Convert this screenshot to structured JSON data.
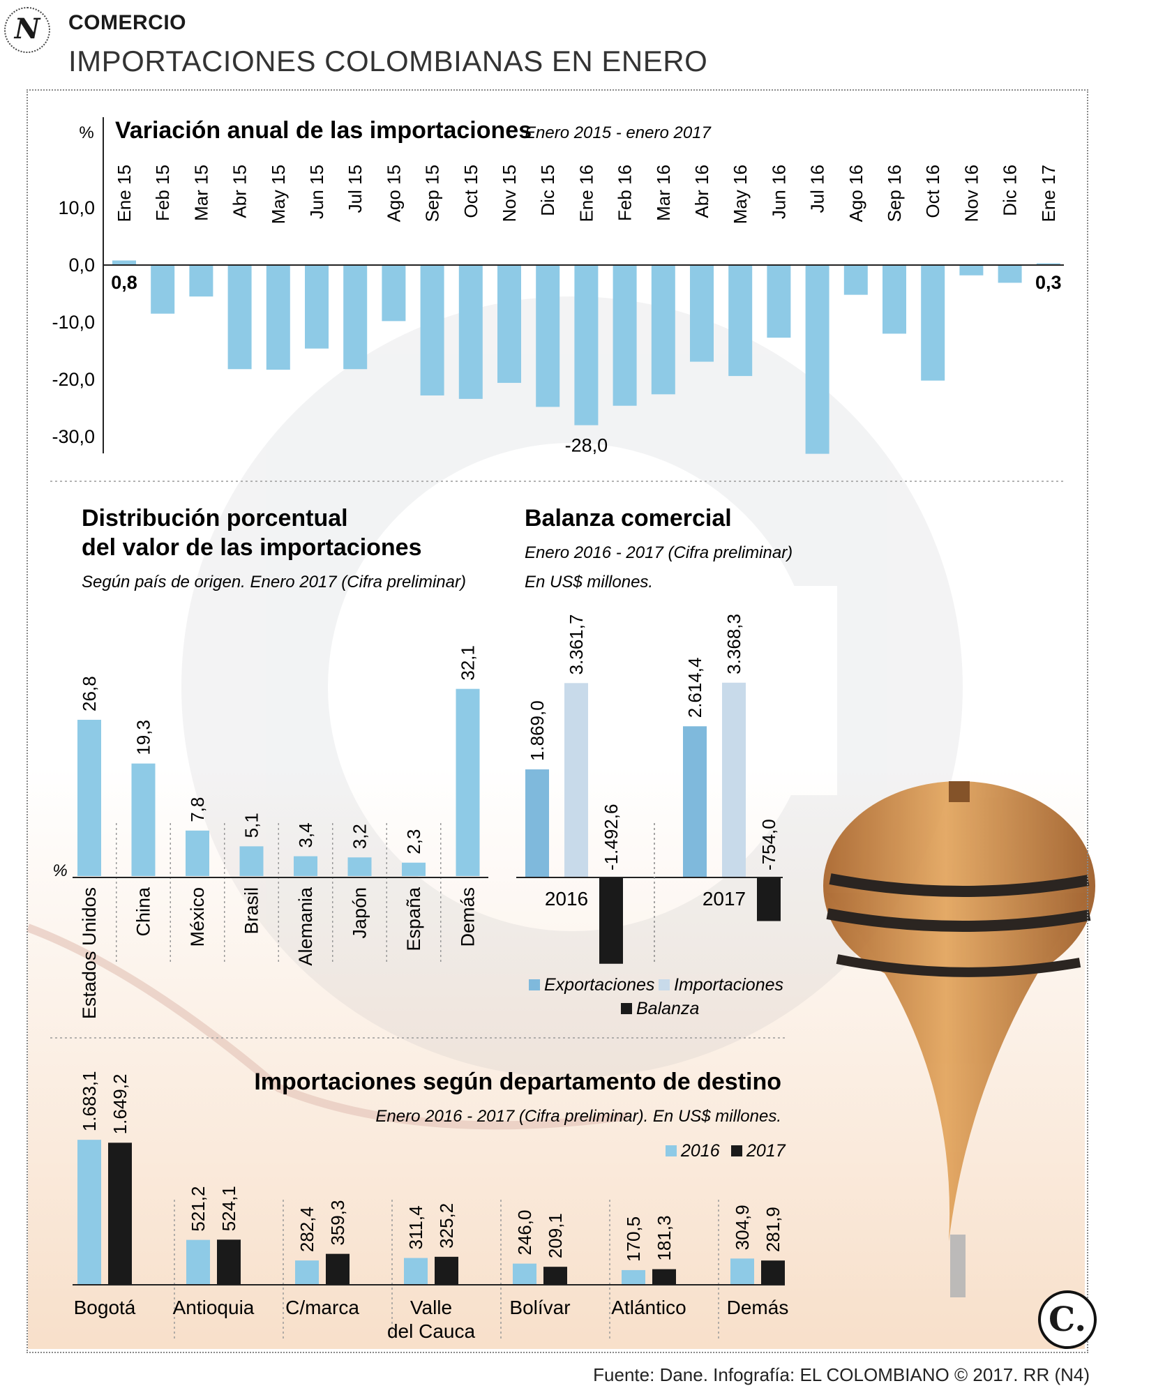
{
  "header": {
    "section": "COMERCIO",
    "title": "IMPORTACIONES COLOMBIANAS EN ENERO",
    "logo_letter": "N"
  },
  "footer": {
    "source": "Fuente: Dane. Infografía: EL COLOMBIANO © 2017. RR (N4)",
    "logo_letter": "C."
  },
  "colors": {
    "light_blue": "#8ecae6",
    "mid_blue": "#7fb9dc",
    "pale_blue": "#c8daea",
    "black": "#1a1a1a"
  },
  "chart_data": [
    {
      "id": "variacion",
      "type": "bar",
      "title": "Variación anual de las importaciones",
      "subtitle": "Enero 2015 - enero 2017",
      "ylabel": "%",
      "ylim": [
        -30,
        10
      ],
      "yticks": [
        "10,0",
        "0,0",
        "-10,0",
        "-20,0",
        "-30,0"
      ],
      "ytick_values": [
        10,
        0,
        -10,
        -20,
        -30
      ],
      "categories": [
        "Ene 15",
        "Feb 15",
        "Mar 15",
        "Abr 15",
        "May 15",
        "Jun 15",
        "Jul 15",
        "Ago 15",
        "Sep 15",
        "Oct 15",
        "Nov 15",
        "Dic 15",
        "Ene 16",
        "Feb 16",
        "Mar 16",
        "Abr 16",
        "May 16",
        "Jun 16",
        "Jul 16",
        "Ago 16",
        "Sep 16",
        "Oct 16",
        "Nov 16",
        "Dic 16",
        "Ene 17"
      ],
      "values": [
        0.8,
        -8.5,
        -5.5,
        -18.2,
        -18.3,
        -14.6,
        -18.2,
        -9.8,
        -22.8,
        -23.4,
        -20.6,
        -24.8,
        -28.0,
        -24.6,
        -22.6,
        -16.9,
        -19.4,
        -12.7,
        -33.0,
        -5.2,
        -12.0,
        -20.2,
        -1.8,
        -3.1,
        0.3
      ],
      "data_labels": [
        {
          "index": 0,
          "text": "0,8"
        },
        {
          "index": 12,
          "text": "-28,0"
        },
        {
          "index": 24,
          "text": "0,3"
        }
      ]
    },
    {
      "id": "distribucion",
      "type": "bar",
      "title_line1": "Distribución porcentual",
      "title_line2": "del valor de las importaciones",
      "subtitle": "Según país de origen. Enero 2017 (Cifra preliminar)",
      "ylabel": "%",
      "categories": [
        "Estados Unidos",
        "China",
        "México",
        "Brasil",
        "Alemania",
        "Japón",
        "España",
        "Demás"
      ],
      "values": [
        26.8,
        19.3,
        7.8,
        5.1,
        3.4,
        3.2,
        2.3,
        32.1
      ],
      "labels": [
        "26,8",
        "19,3",
        "7,8",
        "5,1",
        "3,4",
        "3,2",
        "2,3",
        "32,1"
      ]
    },
    {
      "id": "balanza",
      "type": "bar",
      "title": "Balanza comercial",
      "subtitle_line1": "Enero 2016 - 2017 (Cifra preliminar)",
      "subtitle_line2": "En US$ millones.",
      "categories": [
        "2016",
        "2017"
      ],
      "series": [
        {
          "name": "Exportaciones",
          "values": [
            1869.0,
            2614.4
          ],
          "labels": [
            "1.869,0",
            "2.614,4"
          ]
        },
        {
          "name": "Importaciones",
          "values": [
            3361.7,
            3368.3
          ],
          "labels": [
            "3.361,7",
            "3.368,3"
          ]
        },
        {
          "name": "Balanza",
          "values": [
            -1492.6,
            -754.0
          ],
          "labels": [
            "-1.492,6",
            "-754,0"
          ]
        }
      ]
    },
    {
      "id": "departamentos",
      "type": "bar",
      "title": "Importaciones según departamento de destino",
      "subtitle": "Enero 2016 - 2017 (Cifra preliminar). En US$ millones.",
      "categories": [
        "Bogotá",
        "Antioquia",
        "C/marca",
        "Valle del Cauca",
        "Bolívar",
        "Atlántico",
        "Demás"
      ],
      "category_lines": [
        [
          "Bogotá"
        ],
        [
          "Antioquia"
        ],
        [
          "C/marca"
        ],
        [
          "Valle",
          "del Cauca"
        ],
        [
          "Bolívar"
        ],
        [
          "Atlántico"
        ],
        [
          "Demás"
        ]
      ],
      "series": [
        {
          "name": "2016",
          "values": [
            1683.1,
            521.2,
            282.4,
            311.4,
            246.0,
            170.5,
            304.9
          ],
          "labels": [
            "1.683,1",
            "521,2",
            "282,4",
            "311,4",
            "246,0",
            "170,5",
            "304,9"
          ]
        },
        {
          "name": "2017",
          "values": [
            1649.2,
            524.1,
            359.3,
            325.2,
            209.1,
            181.3,
            281.9
          ],
          "labels": [
            "1.649,2",
            "524,1",
            "359,3",
            "325,2",
            "209,1",
            "181,3",
            "281,9"
          ]
        }
      ]
    }
  ]
}
